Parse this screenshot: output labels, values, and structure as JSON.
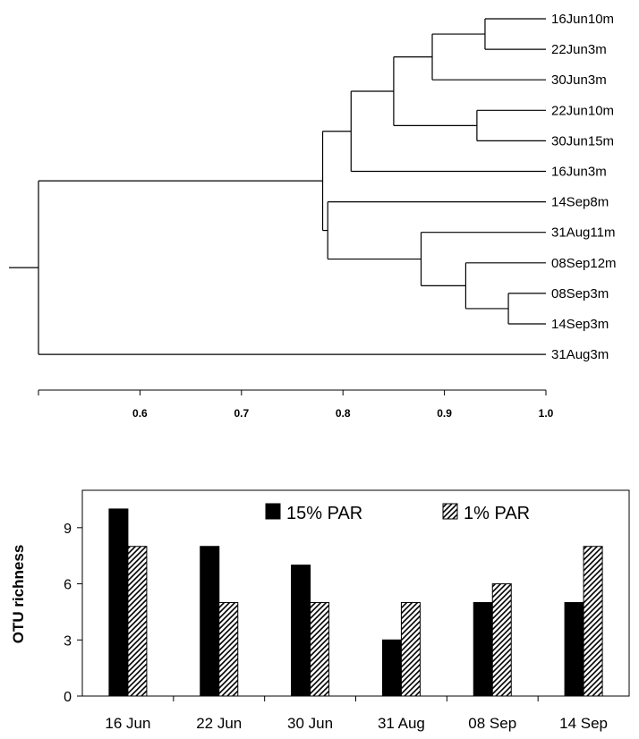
{
  "chart_data": [
    {
      "type": "dendrogram",
      "leaves": [
        "16Jun10m",
        "22Jun3m",
        "30Jun3m",
        "22Jun10m",
        "30Jun15m",
        "16Jun3m",
        "14Sep8m",
        "31Aug11m",
        "08Sep12m",
        "08Sep3m",
        "14Sep3m",
        "31Aug3m"
      ],
      "merges": [
        {
          "id": "A",
          "children": [
            "16Jun10m",
            "22Jun3m"
          ],
          "height": 0.94
        },
        {
          "id": "B",
          "children": [
            "A",
            "30Jun3m"
          ],
          "height": 0.888
        },
        {
          "id": "C",
          "children": [
            "22Jun10m",
            "30Jun15m"
          ],
          "height": 0.932
        },
        {
          "id": "D",
          "children": [
            "B",
            "C"
          ],
          "height": 0.85
        },
        {
          "id": "E",
          "children": [
            "D",
            "16Jun3m"
          ],
          "height": 0.808
        },
        {
          "id": "F",
          "children": [
            "08Sep3m",
            "14Sep3m"
          ],
          "height": 0.963
        },
        {
          "id": "G",
          "children": [
            "08Sep12m",
            "F"
          ],
          "height": 0.921
        },
        {
          "id": "H",
          "children": [
            "31Aug11m",
            "G"
          ],
          "height": 0.877
        },
        {
          "id": "I",
          "children": [
            "14Sep8m",
            "H"
          ],
          "height": 0.785
        },
        {
          "id": "J",
          "children": [
            "E",
            "I"
          ],
          "height": 0.78
        },
        {
          "id": "K",
          "children": [
            "J",
            "31Aug3m"
          ],
          "height": 0.5
        }
      ],
      "x_ticks": [
        "0.6",
        "0.7",
        "0.8",
        "0.9",
        "1.0"
      ],
      "xlim": [
        0.5,
        1.0
      ]
    },
    {
      "type": "bar",
      "categories": [
        "16 Jun",
        "22 Jun",
        "30 Jun",
        "31 Aug",
        "08 Sep",
        "14 Sep"
      ],
      "series": [
        {
          "name": "15% PAR",
          "values": [
            10,
            8,
            7,
            3,
            5,
            5
          ],
          "fill": "#000000"
        },
        {
          "name": "1% PAR",
          "values": [
            8,
            5,
            5,
            5,
            6,
            8
          ],
          "fill": "hatch"
        }
      ],
      "ylabel": "OTU richness",
      "y_ticks": [
        "0",
        "3",
        "6",
        "9"
      ],
      "ylim": [
        0,
        11
      ],
      "legend": "top-right"
    }
  ]
}
